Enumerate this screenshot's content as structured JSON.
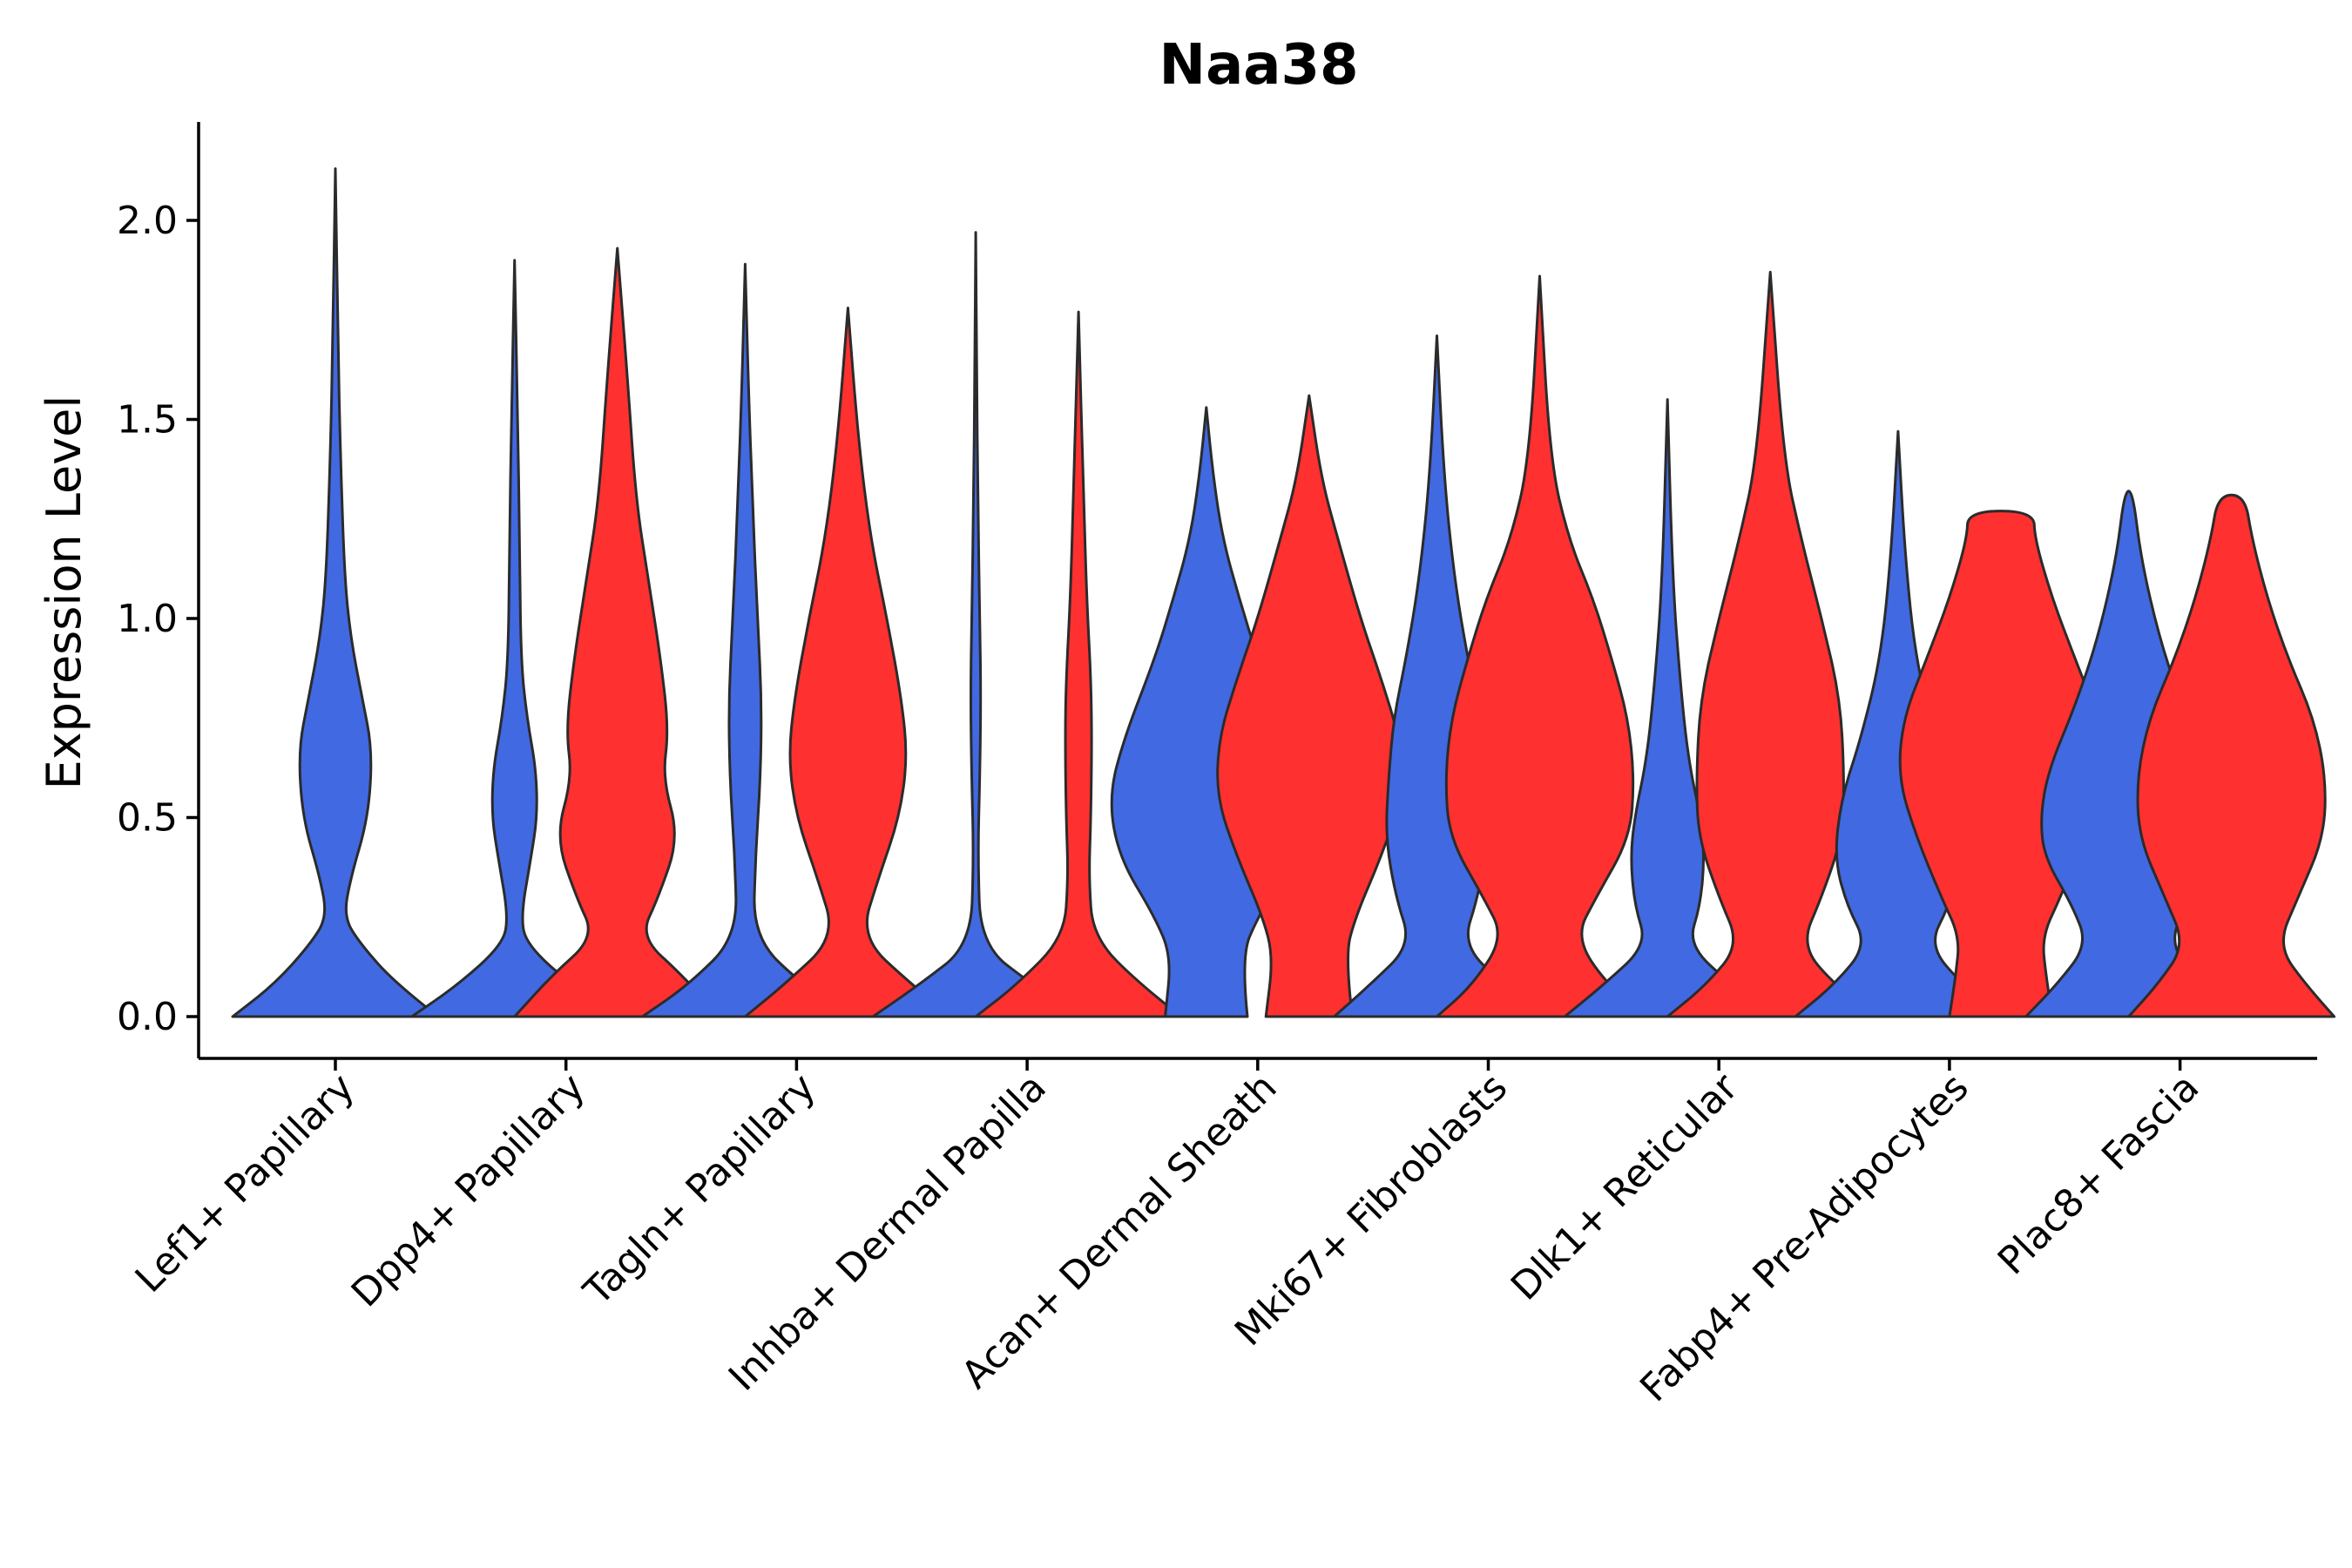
{
  "chart_data": {
    "type": "violin",
    "title": "Naa38",
    "xlabel": "",
    "ylabel": "Expression Level",
    "ylim": [
      -0.1,
      2.25
    ],
    "yticks": [
      0.0,
      0.5,
      1.0,
      1.5,
      2.0
    ],
    "ytick_labels": [
      "0.0",
      "0.5",
      "1.0",
      "1.5",
      "2.0"
    ],
    "grid": false,
    "legend": "none",
    "colors": {
      "group_1": "#4169E1",
      "group_2": "#FF3030",
      "outline": "#2b2b2b"
    },
    "categories": [
      "Lef1+ Papillary",
      "Dpp4+ Papillary",
      "Tagln+ Papillary",
      "Inhba+ Dermal Papilla",
      "Acan+ Dermal Sheath",
      "Mki67+ Fibroblasts",
      "Dlk1+ Reticular",
      "Fabp4+ Pre-Adipocytes",
      "Plac8+ Fascia"
    ],
    "violins": [
      {
        "category_index": 0,
        "group": 1,
        "max": 2.13,
        "profile": [
          [
            0,
            1
          ],
          [
            0.08,
            0.6
          ],
          [
            0.18,
            0.25
          ],
          [
            0.25,
            0.08
          ],
          [
            0.35,
            0.15
          ],
          [
            0.5,
            0.32
          ],
          [
            0.67,
            0.36
          ],
          [
            0.8,
            0.26
          ],
          [
            0.95,
            0.15
          ],
          [
            1.1,
            0.09
          ],
          [
            1.4,
            0.05
          ],
          [
            1.7,
            0.025
          ],
          [
            2.13,
            0
          ]
        ]
      },
      {
        "category_index": 1,
        "group": 1,
        "max": 1.9,
        "profile": [
          [
            0,
            1
          ],
          [
            0.08,
            0.55
          ],
          [
            0.18,
            0.12
          ],
          [
            0.25,
            0.06
          ],
          [
            0.4,
            0.16
          ],
          [
            0.5,
            0.22
          ],
          [
            0.62,
            0.21
          ],
          [
            0.75,
            0.12
          ],
          [
            0.9,
            0.06
          ],
          [
            1.2,
            0.05
          ],
          [
            1.5,
            0.03
          ],
          [
            1.9,
            0
          ]
        ]
      },
      {
        "category_index": 1,
        "group": 2,
        "max": 1.93,
        "profile": [
          [
            0,
            1
          ],
          [
            0.1,
            0.65
          ],
          [
            0.2,
            0.22
          ],
          [
            0.3,
            0.4
          ],
          [
            0.45,
            0.6
          ],
          [
            0.6,
            0.44
          ],
          [
            0.72,
            0.5
          ],
          [
            0.9,
            0.42
          ],
          [
            1.1,
            0.3
          ],
          [
            1.3,
            0.18
          ],
          [
            1.6,
            0.1
          ],
          [
            1.93,
            0
          ]
        ]
      },
      {
        "category_index": 2,
        "group": 1,
        "max": 1.89,
        "profile": [
          [
            0,
            1
          ],
          [
            0.08,
            0.55
          ],
          [
            0.2,
            0.08
          ],
          [
            0.4,
            0.1
          ],
          [
            0.6,
            0.15
          ],
          [
            0.8,
            0.16
          ],
          [
            1.0,
            0.12
          ],
          [
            1.3,
            0.07
          ],
          [
            1.6,
            0.03
          ],
          [
            1.89,
            0
          ]
        ]
      },
      {
        "category_index": 2,
        "group": 2,
        "max": 1.78,
        "profile": [
          [
            0,
            1
          ],
          [
            0.08,
            0.62
          ],
          [
            0.2,
            0.12
          ],
          [
            0.35,
            0.3
          ],
          [
            0.5,
            0.5
          ],
          [
            0.65,
            0.58
          ],
          [
            0.8,
            0.52
          ],
          [
            1.0,
            0.38
          ],
          [
            1.2,
            0.22
          ],
          [
            1.45,
            0.1
          ],
          [
            1.78,
            0
          ]
        ]
      },
      {
        "category_index": 3,
        "group": 1,
        "max": 1.97,
        "profile": [
          [
            0,
            1
          ],
          [
            0.08,
            0.55
          ],
          [
            0.18,
            0.05
          ],
          [
            0.4,
            0.02
          ],
          [
            0.6,
            0.04
          ],
          [
            0.8,
            0.05
          ],
          [
            1.0,
            0.04
          ],
          [
            1.3,
            0.02
          ],
          [
            1.6,
            0.01
          ],
          [
            1.97,
            0
          ]
        ]
      },
      {
        "category_index": 3,
        "group": 2,
        "max": 1.77,
        "profile": [
          [
            0,
            1
          ],
          [
            0.08,
            0.6
          ],
          [
            0.2,
            0.14
          ],
          [
            0.35,
            0.1
          ],
          [
            0.5,
            0.12
          ],
          [
            0.7,
            0.13
          ],
          [
            0.85,
            0.12
          ],
          [
            1.05,
            0.08
          ],
          [
            1.3,
            0.05
          ],
          [
            1.77,
            0
          ]
        ]
      },
      {
        "category_index": 4,
        "group": 1,
        "max": 1.53,
        "profile": [
          [
            0,
            0.4
          ],
          [
            0.15,
            0.34
          ],
          [
            0.25,
            0.5
          ],
          [
            0.4,
            0.85
          ],
          [
            0.55,
            0.95
          ],
          [
            0.7,
            0.8
          ],
          [
            0.9,
            0.5
          ],
          [
            1.05,
            0.32
          ],
          [
            1.2,
            0.16
          ],
          [
            1.35,
            0.07
          ],
          [
            1.53,
            0
          ]
        ]
      },
      {
        "category_index": 4,
        "group": 2,
        "max": 1.56,
        "profile": [
          [
            0,
            0.42
          ],
          [
            0.15,
            0.35
          ],
          [
            0.25,
            0.45
          ],
          [
            0.4,
            0.7
          ],
          [
            0.55,
            0.9
          ],
          [
            0.7,
            0.88
          ],
          [
            0.85,
            0.7
          ],
          [
            1.0,
            0.5
          ],
          [
            1.2,
            0.28
          ],
          [
            1.35,
            0.12
          ],
          [
            1.56,
            0
          ]
        ]
      },
      {
        "category_index": 5,
        "group": 1,
        "max": 1.71,
        "profile": [
          [
            0,
            1
          ],
          [
            0.08,
            0.65
          ],
          [
            0.18,
            0.25
          ],
          [
            0.3,
            0.4
          ],
          [
            0.45,
            0.5
          ],
          [
            0.6,
            0.47
          ],
          [
            0.75,
            0.42
          ],
          [
            0.9,
            0.3
          ],
          [
            1.1,
            0.17
          ],
          [
            1.35,
            0.07
          ],
          [
            1.71,
            0
          ]
        ]
      },
      {
        "category_index": 5,
        "group": 2,
        "max": 1.86,
        "profile": [
          [
            0,
            1
          ],
          [
            0.08,
            0.65
          ],
          [
            0.2,
            0.35
          ],
          [
            0.3,
            0.55
          ],
          [
            0.45,
            0.88
          ],
          [
            0.6,
            0.92
          ],
          [
            0.75,
            0.86
          ],
          [
            0.9,
            0.7
          ],
          [
            1.05,
            0.52
          ],
          [
            1.2,
            0.28
          ],
          [
            1.4,
            0.1
          ],
          [
            1.86,
            0
          ]
        ]
      },
      {
        "category_index": 6,
        "group": 1,
        "max": 1.55,
        "profile": [
          [
            0,
            1
          ],
          [
            0.08,
            0.62
          ],
          [
            0.18,
            0.2
          ],
          [
            0.28,
            0.32
          ],
          [
            0.4,
            0.36
          ],
          [
            0.5,
            0.32
          ],
          [
            0.65,
            0.2
          ],
          [
            0.85,
            0.12
          ],
          [
            1.1,
            0.05
          ],
          [
            1.55,
            0
          ]
        ]
      },
      {
        "category_index": 6,
        "group": 2,
        "max": 1.87,
        "profile": [
          [
            0,
            1
          ],
          [
            0.08,
            0.62
          ],
          [
            0.18,
            0.3
          ],
          [
            0.3,
            0.5
          ],
          [
            0.45,
            0.7
          ],
          [
            0.6,
            0.72
          ],
          [
            0.8,
            0.68
          ],
          [
            1.0,
            0.5
          ],
          [
            1.2,
            0.3
          ],
          [
            1.4,
            0.13
          ],
          [
            1.87,
            0
          ]
        ]
      },
      {
        "category_index": 7,
        "group": 1,
        "max": 1.47,
        "profile": [
          [
            0,
            1
          ],
          [
            0.08,
            0.62
          ],
          [
            0.18,
            0.3
          ],
          [
            0.28,
            0.5
          ],
          [
            0.4,
            0.62
          ],
          [
            0.55,
            0.55
          ],
          [
            0.7,
            0.36
          ],
          [
            0.9,
            0.17
          ],
          [
            1.15,
            0.07
          ],
          [
            1.47,
            0
          ]
        ]
      },
      {
        "category_index": 7,
        "group": 2,
        "max": 1.27,
        "profile": [
          [
            0,
            0.5
          ],
          [
            0.1,
            0.44
          ],
          [
            0.2,
            0.4
          ],
          [
            0.3,
            0.58
          ],
          [
            0.45,
            0.82
          ],
          [
            0.6,
            1.0
          ],
          [
            0.75,
            0.95
          ],
          [
            0.9,
            0.72
          ],
          [
            1.05,
            0.5
          ],
          [
            1.2,
            0.33
          ],
          [
            1.27,
            0.32
          ]
        ]
      },
      {
        "category_index": 8,
        "group": 1,
        "max": 1.32,
        "profile": [
          [
            0,
            1
          ],
          [
            0.08,
            0.7
          ],
          [
            0.18,
            0.4
          ],
          [
            0.28,
            0.55
          ],
          [
            0.4,
            0.82
          ],
          [
            0.5,
            0.86
          ],
          [
            0.62,
            0.78
          ],
          [
            0.78,
            0.52
          ],
          [
            0.95,
            0.3
          ],
          [
            1.15,
            0.12
          ],
          [
            1.32,
            0.04
          ]
        ]
      },
      {
        "category_index": 8,
        "group": 2,
        "max": 1.31,
        "profile": [
          [
            0,
            1
          ],
          [
            0.08,
            0.72
          ],
          [
            0.18,
            0.45
          ],
          [
            0.3,
            0.65
          ],
          [
            0.45,
            0.9
          ],
          [
            0.6,
            0.92
          ],
          [
            0.75,
            0.8
          ],
          [
            0.9,
            0.55
          ],
          [
            1.05,
            0.35
          ],
          [
            1.2,
            0.2
          ],
          [
            1.31,
            0.13
          ]
        ]
      }
    ]
  }
}
